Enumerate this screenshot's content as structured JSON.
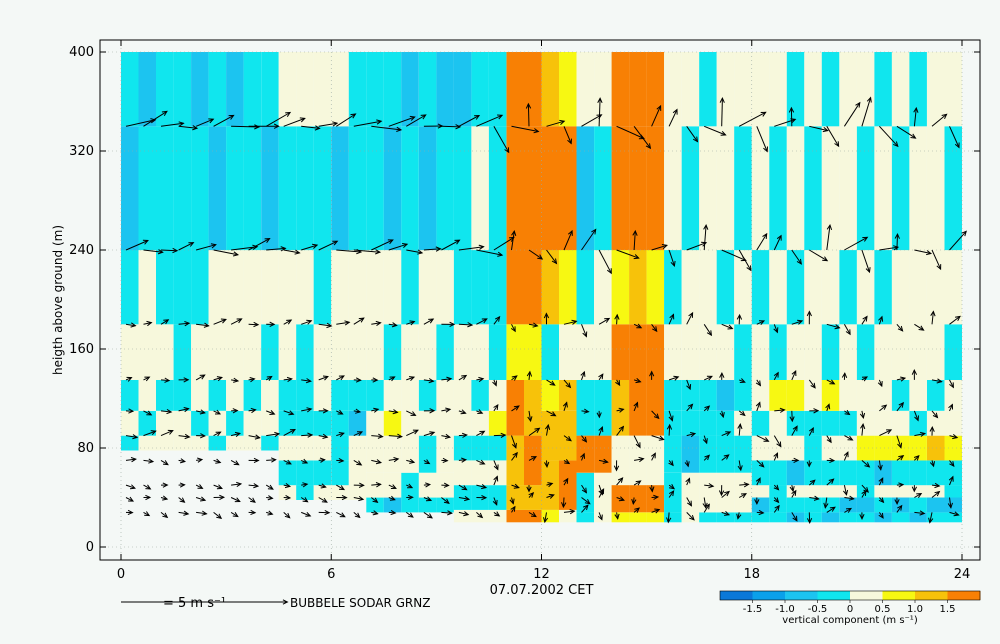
{
  "chart_data": {
    "type": "heatmap",
    "title": "",
    "xlabel": "07.07.2002 CET",
    "ylabel": "heigth above ground (m)",
    "x_ticks": [
      "0",
      "6",
      "12",
      "18",
      "24"
    ],
    "y_ticks": [
      "0",
      "80",
      "160",
      "240",
      "320",
      "400"
    ],
    "xlim": [
      0,
      24
    ],
    "ylim": [
      0,
      400
    ],
    "grid": true,
    "colorbar": {
      "label": "vertical component (m s⁻¹)",
      "tick_labels": [
        "-1.5",
        "-1.0",
        "-0.5",
        "0",
        "0.5",
        "1.0",
        "1.5"
      ],
      "bins": [
        -2.0,
        -1.5,
        -1.0,
        -0.5,
        0.0,
        0.5,
        1.0,
        1.5,
        2.0
      ],
      "colors": [
        "#0a78d8",
        "#0aa0ea",
        "#1cc4f0",
        "#10e6ee",
        "#f7f8dc",
        "#f7f812",
        "#f7c20a",
        "#f88004"
      ]
    },
    "height_levels": [
      28,
      40,
      50,
      60,
      70,
      90,
      110,
      135,
      180,
      240,
      340,
      400
    ],
    "time_step_h": 0.5,
    "vertical_component_profiles": [
      {
        "start": 0.0,
        "end": 2.0,
        "cols": [
          [
            90,
            0.2
          ],
          [
            110,
            0.1
          ],
          [
            135,
            -0.1
          ],
          [
            180,
            0.2
          ],
          [
            240,
            -0.2
          ],
          [
            340,
            -0.3
          ],
          [
            400,
            -0.3
          ]
        ]
      },
      {
        "start": 2.0,
        "end": 4.5,
        "cols": [
          [
            90,
            0.1
          ],
          [
            110,
            0.1
          ],
          [
            135,
            0.1
          ],
          [
            180,
            0.2
          ],
          [
            240,
            0.2
          ],
          [
            340,
            -0.4
          ],
          [
            400,
            -0.5
          ]
        ]
      },
      {
        "start": 4.5,
        "end": 7.0,
        "cols": [
          [
            50,
            0.2
          ],
          [
            70,
            -0.2
          ],
          [
            90,
            0.2
          ],
          [
            110,
            -0.3
          ],
          [
            135,
            -0.2
          ],
          [
            180,
            0.2
          ],
          [
            240,
            0.2
          ],
          [
            340,
            -0.3
          ],
          [
            400,
            0.2
          ]
        ]
      },
      {
        "start": 7.0,
        "end": 9.5,
        "cols": [
          [
            40,
            -0.3
          ],
          [
            60,
            0.2
          ],
          [
            90,
            0.2
          ],
          [
            110,
            0.3
          ],
          [
            135,
            0.1
          ],
          [
            180,
            0.1
          ],
          [
            240,
            0.2
          ],
          [
            340,
            -0.4
          ],
          [
            400,
            -0.4
          ]
        ]
      },
      {
        "start": 9.5,
        "end": 11.0,
        "cols": [
          [
            30,
            0.3
          ],
          [
            50,
            -0.2
          ],
          [
            70,
            0.2
          ],
          [
            90,
            -0.3
          ],
          [
            110,
            0.3
          ],
          [
            135,
            0.1
          ],
          [
            180,
            0.2
          ],
          [
            240,
            -0.3
          ],
          [
            340,
            -0.2
          ],
          [
            400,
            -0.3
          ]
        ]
      },
      {
        "start": 11.0,
        "end": 12.0,
        "cols": [
          [
            30,
            1.8
          ],
          [
            50,
            1.2
          ],
          [
            90,
            1.6
          ],
          [
            135,
            1.7
          ],
          [
            180,
            0.8
          ],
          [
            240,
            1.8
          ],
          [
            340,
            1.7
          ],
          [
            400,
            1.8
          ]
        ]
      },
      {
        "start": 12.0,
        "end": 13.0,
        "cols": [
          [
            30,
            0.6
          ],
          [
            70,
            1.6
          ],
          [
            110,
            1.2
          ],
          [
            135,
            0.8
          ],
          [
            180,
            0.2
          ],
          [
            240,
            1.2
          ],
          [
            340,
            1.7
          ],
          [
            400,
            0.8
          ]
        ]
      },
      {
        "start": 13.0,
        "end": 14.0,
        "cols": [
          [
            28,
            -0.2
          ],
          [
            60,
            0.2
          ],
          [
            90,
            1.8
          ],
          [
            135,
            -0.3
          ],
          [
            180,
            0.2
          ],
          [
            240,
            -0.2
          ],
          [
            340,
            -0.3
          ],
          [
            400,
            0.3
          ]
        ]
      },
      {
        "start": 14.0,
        "end": 15.5,
        "cols": [
          [
            28,
            0.8
          ],
          [
            50,
            1.7
          ],
          [
            90,
            0.2
          ],
          [
            135,
            1.6
          ],
          [
            180,
            1.8
          ],
          [
            240,
            0.9
          ],
          [
            340,
            1.7
          ],
          [
            400,
            1.8
          ]
        ]
      },
      {
        "start": 15.5,
        "end": 18.0,
        "cols": [
          [
            28,
            -0.2
          ],
          [
            60,
            0.2
          ],
          [
            90,
            -0.3
          ],
          [
            110,
            -0.2
          ],
          [
            135,
            -0.3
          ],
          [
            180,
            0.2
          ],
          [
            240,
            0.1
          ],
          [
            340,
            0.0
          ],
          [
            400,
            0.2
          ]
        ]
      },
      {
        "start": 18.0,
        "end": 21.0,
        "cols": [
          [
            28,
            -0.5
          ],
          [
            40,
            -0.3
          ],
          [
            50,
            0.2
          ],
          [
            70,
            -0.3
          ],
          [
            90,
            0.2
          ],
          [
            110,
            -0.2
          ],
          [
            135,
            0.6
          ],
          [
            180,
            0.0
          ],
          [
            240,
            0.0
          ],
          [
            340,
            0.0
          ],
          [
            400,
            0.0
          ]
        ]
      },
      {
        "start": 21.0,
        "end": 24.0,
        "cols": [
          [
            28,
            -0.4
          ],
          [
            40,
            -0.6
          ],
          [
            50,
            0.2
          ],
          [
            70,
            -0.3
          ],
          [
            90,
            0.8
          ],
          [
            110,
            0.2
          ],
          [
            135,
            0.1
          ],
          [
            180,
            0.2
          ],
          [
            240,
            0.2
          ],
          [
            340,
            0.0
          ],
          [
            400,
            0.0
          ]
        ]
      }
    ],
    "wind_vectors": {
      "reference_label": "= 5 m s⁻¹",
      "reference_speed_ms": 5,
      "levels": [
        {
          "z": 340,
          "u": 4.5,
          "v": 1.0
        },
        {
          "z": 240,
          "u": 4.0,
          "v": 0.6
        },
        {
          "z": 180,
          "u": 2.0,
          "v": 0.4
        },
        {
          "z": 135,
          "u": 1.5,
          "v": 0.3
        },
        {
          "z": 110,
          "u": 1.6,
          "v": -0.2
        },
        {
          "z": 90,
          "u": 2.0,
          "v": 0.3
        },
        {
          "z": 70,
          "u": 1.5,
          "v": -0.3
        },
        {
          "z": 50,
          "u": 1.5,
          "v": -0.3
        },
        {
          "z": 40,
          "u": 1.5,
          "v": -0.5
        },
        {
          "z": 28,
          "u": 1.5,
          "v": -0.6
        }
      ]
    }
  },
  "footer": {
    "reference_label": "= 5 m s⁻¹",
    "station_label": "BUBBELE SODAR GRNZ"
  }
}
